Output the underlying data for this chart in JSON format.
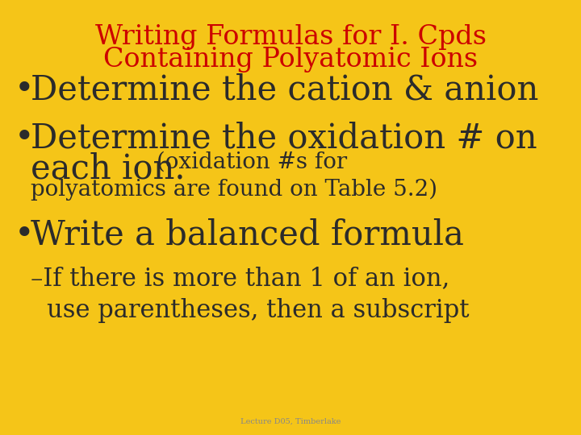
{
  "background_color": "#F5C518",
  "title_line1": "Writing Formulas for I. Cpds",
  "title_line2": "Containing Polyatomic Ions",
  "title_color": "#CC0000",
  "title_fontsize": 24,
  "body_color": "#2B2B2B",
  "bullet1": "Determine the cation & anion",
  "bullet2_line1": "Determine the oxidation # on",
  "bullet2_line2_large": "each ion.",
  "bullet2_line2_small": " (oxidation #s for",
  "bullet2_line3": "polyatomics are found on Table 5.2)",
  "bullet3": "Write a balanced formula",
  "sub1": "–If there is more than 1 of an ion,",
  "sub2": "use parentheses, then a subscript",
  "footnote": "Lecture D05, Timberlake",
  "footnote_color": "#888888",
  "bullet_large_fontsize": 30,
  "bullet_small_fontsize": 20,
  "sub_fontsize": 22
}
